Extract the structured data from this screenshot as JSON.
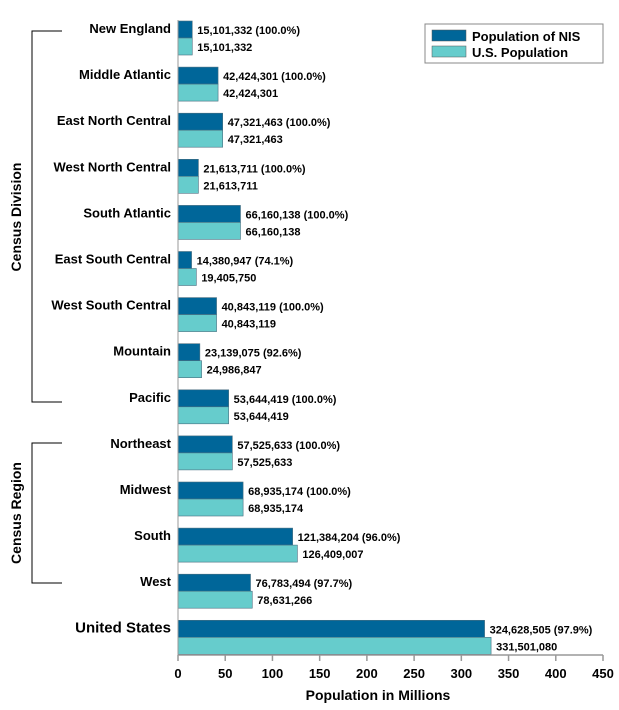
{
  "chart_data": {
    "type": "bar",
    "orientation": "horizontal",
    "xlabel": "Population in Millions",
    "xlim": [
      0,
      450
    ],
    "xticks": [
      "0",
      "50",
      "100",
      "150",
      "200",
      "250",
      "300",
      "350",
      "400",
      "450"
    ],
    "categories": [
      "New England",
      "Middle Atlantic",
      "East North Central",
      "West North Central",
      "South Atlantic",
      "East South Central",
      "West South Central",
      "Mountain",
      "Pacific",
      "Northeast",
      "Midwest",
      "South",
      "West",
      "United States"
    ],
    "groups": [
      {
        "label": "Census Division",
        "from": "New England",
        "to": "Pacific"
      },
      {
        "label": "Census Region",
        "from": "Northeast",
        "to": "West"
      }
    ],
    "series": [
      {
        "name": "Population of NIS",
        "color": "#006699",
        "values": [
          15101332,
          42424301,
          47321463,
          21613711,
          66160138,
          14380947,
          40843119,
          23139075,
          53644419,
          57525633,
          68935174,
          121384204,
          76783494,
          324628505
        ],
        "labels": [
          "15,101,332 (100.0%)",
          "42,424,301 (100.0%)",
          "47,321,463 (100.0%)",
          "21,613,711 (100.0%)",
          "66,160,138 (100.0%)",
          "14,380,947 (74.1%)",
          "40,843,119 (100.0%)",
          "23,139,075 (92.6%)",
          "53,644,419 (100.0%)",
          "57,525,633 (100.0%)",
          "68,935,174 (100.0%)",
          "121,384,204 (96.0%)",
          "76,783,494 (97.7%)",
          "324,628,505 (97.9%)"
        ]
      },
      {
        "name": "U.S. Population",
        "color": "#66CCCC",
        "values": [
          15101332,
          42424301,
          47321463,
          21613711,
          66160138,
          19405750,
          40843119,
          24986847,
          53644419,
          57525633,
          68935174,
          126409007,
          78631266,
          331501080
        ],
        "labels": [
          "15,101,332",
          "42,424,301",
          "47,321,463",
          "21,613,711",
          "66,160,138",
          "19,405,750",
          "40,843,119",
          "24,986,847",
          "53,644,419",
          "57,525,633",
          "68,935,174",
          "126,409,007",
          "78,631,266",
          "331,501,080"
        ]
      }
    ],
    "legend": "top-right",
    "grid": false
  }
}
